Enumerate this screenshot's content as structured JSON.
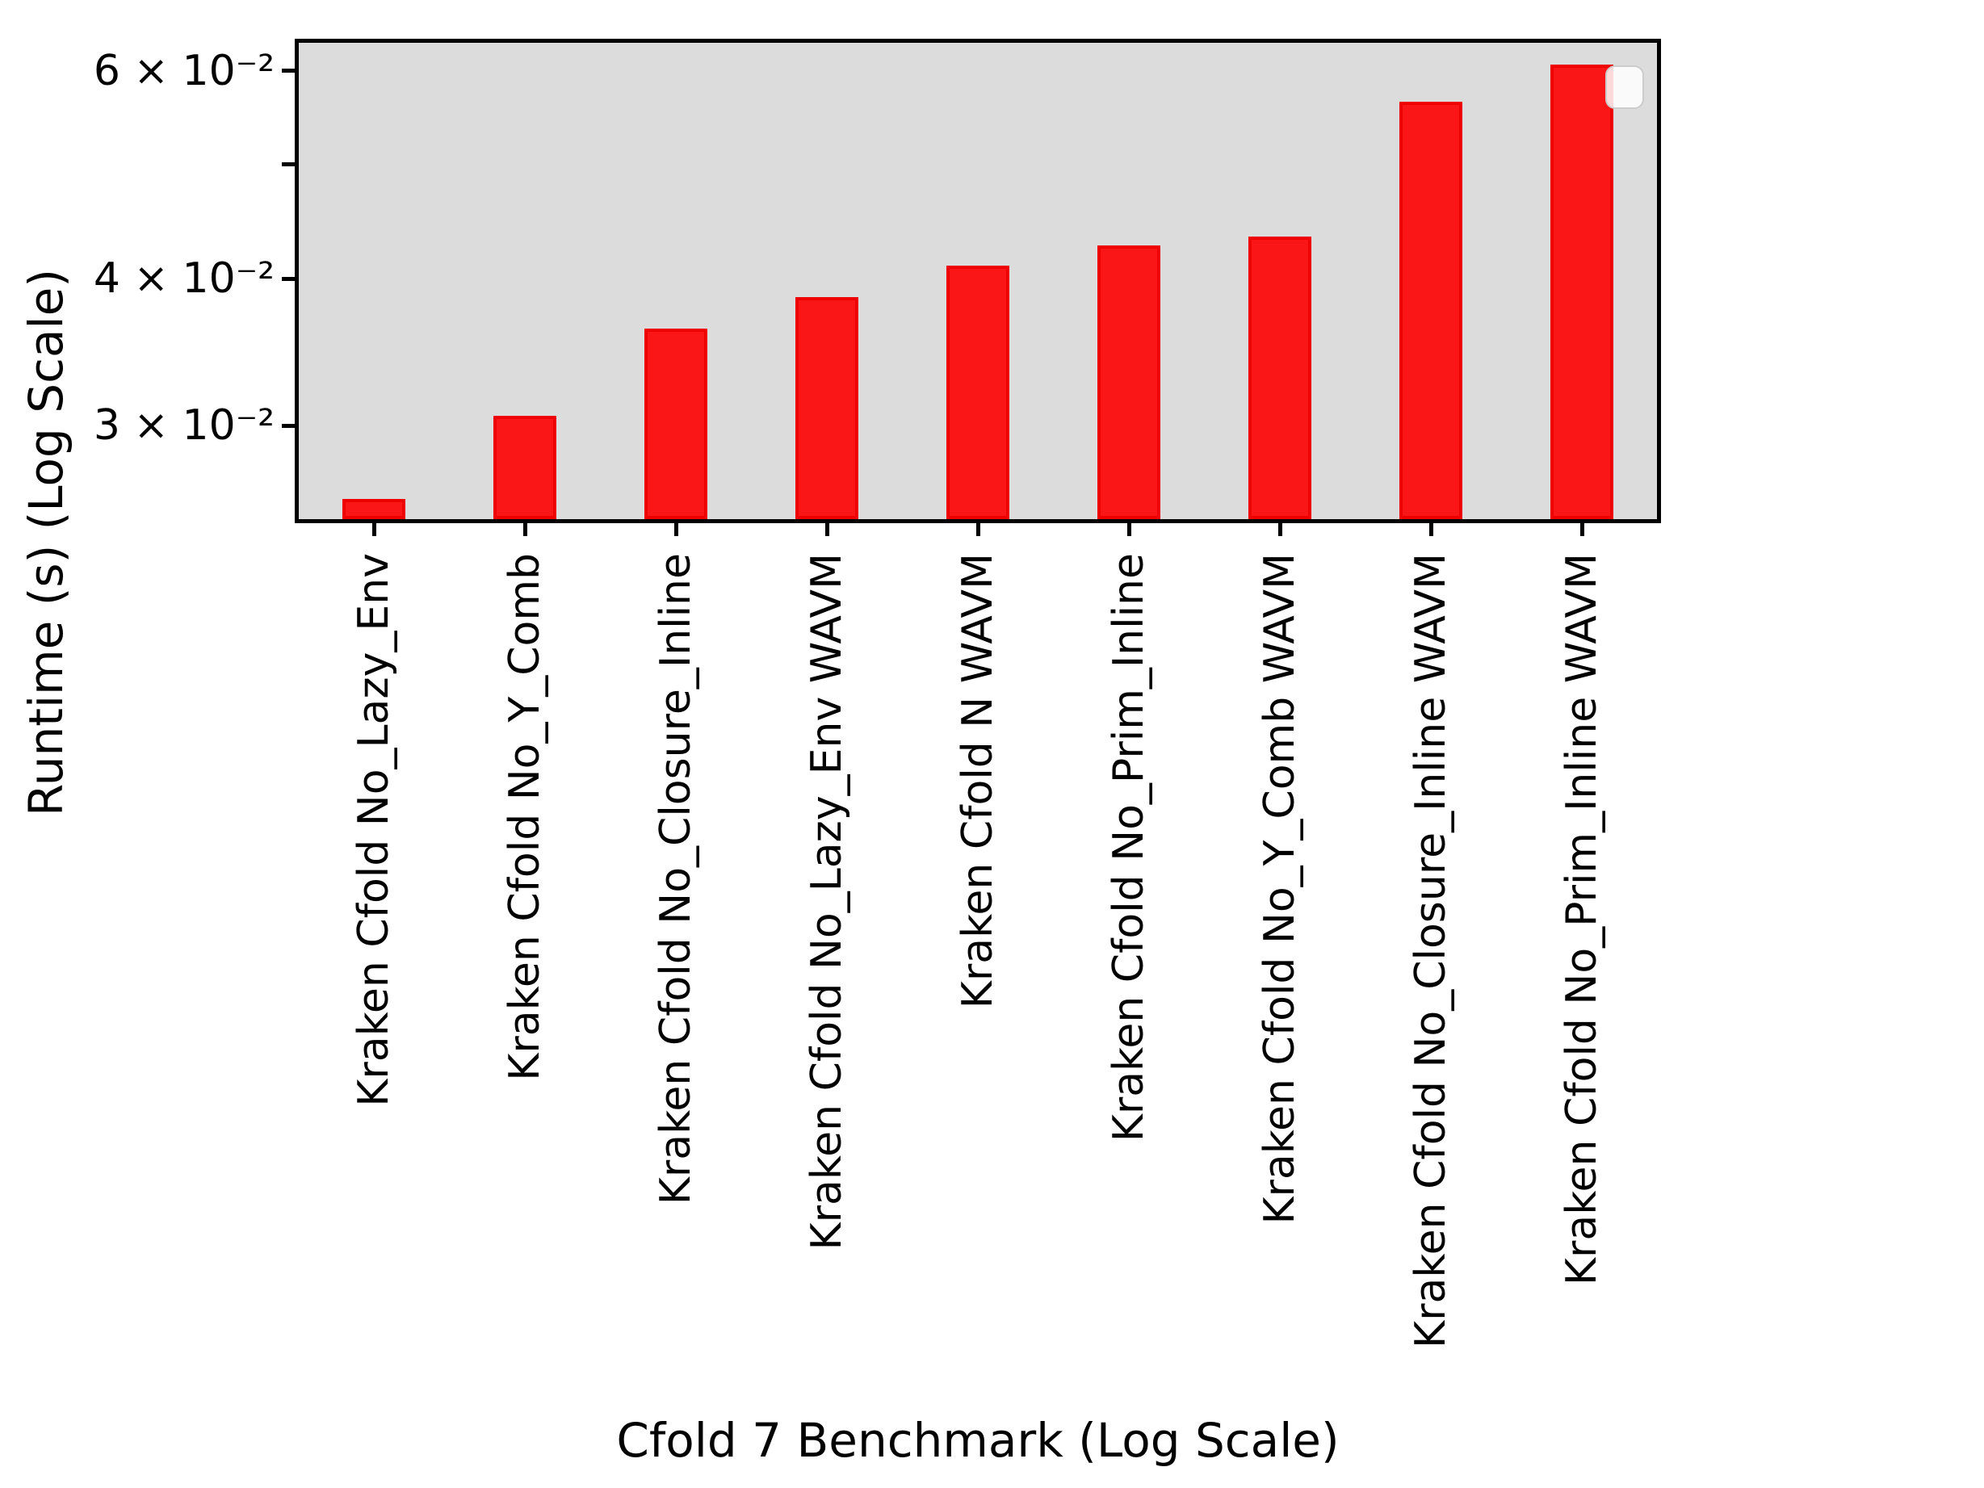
{
  "figure": {
    "background": "#ffffff",
    "plot_background": "#dcdcdc",
    "spine_color": "#000000",
    "bar_fill": "#fa1616",
    "bar_edge": "#ee0000"
  },
  "chart_data": {
    "type": "bar",
    "title": "",
    "xlabel": "Cfold 7 Benchmark (Log Scale)",
    "ylabel": "Runtime (s) (Log Scale)",
    "yscale": "log",
    "ylim": [
      0.025,
      0.0634
    ],
    "grid": false,
    "categories": [
      "Kraken Cfold No_Lazy_Env",
      "Kraken Cfold No_Y_Comb",
      "Kraken Cfold No_Closure_Inline",
      "Kraken Cfold No_Lazy_Env WAVM",
      "Kraken Cfold N WAVM",
      "Kraken Cfold No_Prim_Inline",
      "Kraken Cfold No_Y_Comb WAVM",
      "Kraken Cfold No_Closure_Inline WAVM",
      "Kraken Cfold No_Prim_Inline WAVM"
    ],
    "values": [
      0.026,
      0.0306,
      0.0363,
      0.0386,
      0.041,
      0.0427,
      0.0434,
      0.0565,
      0.0608
    ],
    "yticks": [
      {
        "value": 0.06,
        "label": "6 × 10⁻²"
      },
      {
        "value": 0.05,
        "label": ""
      },
      {
        "value": 0.04,
        "label": "4 × 10⁻²"
      },
      {
        "value": 0.03,
        "label": "3 × 10⁻²"
      }
    ],
    "legend": {
      "visible": true,
      "position": "upper right",
      "entries": []
    }
  }
}
